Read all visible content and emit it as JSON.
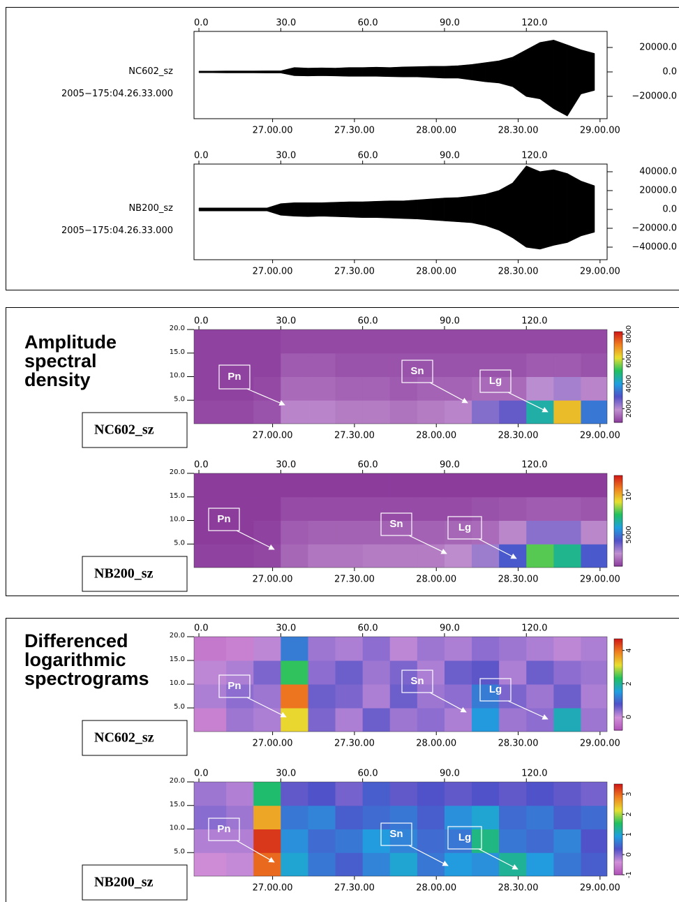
{
  "chart_data": [
    {
      "type": "line",
      "label": "NC602_sz",
      "subtitle": "2005−175:04.26.33.000",
      "xlim": [
        -1.8,
        149.6
      ],
      "xticks": [
        {
          "value": 0,
          "label": "0.0"
        },
        {
          "value": 30,
          "label": "30.0"
        },
        {
          "value": 60,
          "label": "60.0"
        },
        {
          "value": 90,
          "label": "90.0"
        },
        {
          "value": 120,
          "label": "120.0"
        }
      ],
      "x2ticks": [
        {
          "value": 27,
          "label": "27.00.00"
        },
        {
          "value": 57,
          "label": "27.30.00"
        },
        {
          "value": 87,
          "label": "28.00.00"
        },
        {
          "value": 117,
          "label": "28.30.00"
        },
        {
          "value": 147,
          "label": "29.00.00"
        }
      ],
      "ylim": [
        -38286,
        33143
      ],
      "yticks": [
        {
          "value": 20000,
          "label": "20000.0"
        },
        {
          "value": 0,
          "label": "0.0"
        },
        {
          "value": -20000,
          "label": "−20000.0"
        }
      ],
      "x": [
        0,
        5,
        10,
        15,
        20,
        25,
        30,
        35,
        40,
        45,
        50,
        55,
        60,
        65,
        70,
        75,
        80,
        85,
        90,
        95,
        100,
        105,
        110,
        115,
        120,
        125,
        130,
        135,
        140,
        145
      ],
      "series": [
        {
          "color": "#000000",
          "values": [
            600,
            600,
            700,
            700,
            700,
            800,
            800,
            3500,
            3000,
            3200,
            3000,
            3500,
            3500,
            3800,
            3500,
            4000,
            4200,
            4500,
            4500,
            5000,
            6000,
            7500,
            9000,
            12000,
            18000,
            24000,
            26000,
            22000,
            18000,
            15000
          ]
        },
        {
          "color": "#000000",
          "values": [
            -600,
            -600,
            -700,
            -700,
            -700,
            -800,
            -800,
            -3000,
            -3200,
            -3000,
            -3200,
            -3500,
            -3500,
            -3500,
            -3800,
            -4000,
            -4000,
            -4500,
            -5000,
            -5000,
            -6500,
            -8000,
            -9000,
            -12000,
            -20000,
            -22000,
            -30000,
            -36000,
            -18000,
            -15000
          ]
        }
      ]
    },
    {
      "type": "line",
      "label": "NB200_sz",
      "subtitle": "2005−175:04.26.33.000",
      "xlim": [
        -1.8,
        149.6
      ],
      "xticks": [
        {
          "value": 0,
          "label": "0.0"
        },
        {
          "value": 30,
          "label": "30.0"
        },
        {
          "value": 60,
          "label": "60.0"
        },
        {
          "value": 90,
          "label": "90.0"
        },
        {
          "value": 120,
          "label": "120.0"
        }
      ],
      "x2ticks": [
        {
          "value": 27,
          "label": "27.00.00"
        },
        {
          "value": 57,
          "label": "27.30.00"
        },
        {
          "value": 87,
          "label": "28.00.00"
        },
        {
          "value": 117,
          "label": "28.30.00"
        },
        {
          "value": 147,
          "label": "29.00.00"
        }
      ],
      "ylim": [
        -53333,
        48148
      ],
      "yticks": [
        {
          "value": 40000,
          "label": "40000.0"
        },
        {
          "value": 20000,
          "label": "20000.0"
        },
        {
          "value": 0,
          "label": "0.0"
        },
        {
          "value": -20000,
          "label": "−20000.0"
        },
        {
          "value": -40000,
          "label": "−40000.0"
        }
      ],
      "x": [
        0,
        5,
        10,
        15,
        20,
        25,
        30,
        35,
        40,
        45,
        50,
        55,
        60,
        65,
        70,
        75,
        80,
        85,
        90,
        95,
        100,
        105,
        110,
        115,
        120,
        125,
        130,
        135,
        140,
        145
      ],
      "series": [
        {
          "color": "#000000",
          "values": [
            1500,
            1500,
            1500,
            1500,
            1500,
            1500,
            6000,
            7000,
            7000,
            7000,
            7500,
            8000,
            8000,
            8500,
            9000,
            9000,
            10000,
            11000,
            12000,
            12500,
            14000,
            16000,
            20000,
            28000,
            46000,
            40000,
            42000,
            38000,
            30000,
            25000
          ]
        },
        {
          "color": "#000000",
          "values": [
            -1500,
            -1500,
            -1500,
            -1500,
            -1500,
            -1500,
            -6000,
            -7000,
            -7500,
            -7000,
            -7500,
            -8000,
            -8500,
            -8500,
            -9000,
            -9500,
            -10000,
            -11000,
            -12000,
            -13000,
            -14000,
            -17000,
            -22000,
            -30000,
            -40000,
            -42000,
            -38000,
            -35000,
            -28000,
            -24000
          ]
        }
      ]
    },
    {
      "type": "heatmap",
      "title": "Amplitude spectral density",
      "label": "NC602_sz",
      "xlim": [
        -1.8,
        149.6
      ],
      "xticks": [
        {
          "value": 0,
          "label": "0.0"
        },
        {
          "value": 30,
          "label": "30.0"
        },
        {
          "value": 60,
          "label": "60.0"
        },
        {
          "value": 90,
          "label": "90.0"
        },
        {
          "value": 120,
          "label": "120.0"
        }
      ],
      "x2ticks": [
        {
          "value": 27,
          "label": "27.00.00"
        },
        {
          "value": 57,
          "label": "27.30.00"
        },
        {
          "value": 87,
          "label": "28.00.00"
        },
        {
          "value": 117,
          "label": "28.30.00"
        },
        {
          "value": 147,
          "label": "29.00.00"
        }
      ],
      "ylim": [
        0,
        20
      ],
      "yticks": [
        {
          "value": 20,
          "label": "20.0"
        },
        {
          "value": 15,
          "label": "15.0"
        },
        {
          "value": 10,
          "label": "10.0"
        },
        {
          "value": 5,
          "label": "5.0"
        }
      ],
      "xbins": [
        -2,
        10,
        20,
        30,
        40,
        50,
        60,
        70,
        80,
        90,
        100,
        110,
        120,
        130,
        140,
        150
      ],
      "ybins": [
        0,
        5,
        10,
        15,
        20
      ],
      "values": [
        [
          1100,
          1100,
          1200,
          1800,
          1800,
          1700,
          1700,
          1600,
          1700,
          1800,
          2500,
          2800,
          4500,
          6500,
          3500
        ],
        [
          1000,
          1000,
          1100,
          1500,
          1500,
          1400,
          1400,
          1300,
          1400,
          1400,
          1500,
          1500,
          2000,
          2200,
          1800
        ],
        [
          1000,
          1000,
          1000,
          1300,
          1300,
          1200,
          1200,
          1200,
          1200,
          1200,
          1200,
          1200,
          1300,
          1300,
          1200
        ],
        [
          1000,
          1000,
          1000,
          1100,
          1100,
          1100,
          1100,
          1100,
          1100,
          1100,
          1100,
          1100,
          1100,
          1100,
          1100
        ]
      ],
      "clim": [
        900,
        8200
      ],
      "cticks": [
        2000,
        4000,
        6000,
        8000
      ],
      "colormap": [
        "#8a3a9a",
        "#c090d0",
        "#5050c8",
        "#20a0e0",
        "#20c060",
        "#e8e030",
        "#f08020",
        "#d01818"
      ],
      "annotations": [
        "Pn",
        "Sn",
        "Lg"
      ]
    },
    {
      "type": "heatmap",
      "label": "NB200_sz",
      "xlim": [
        -1.8,
        149.6
      ],
      "xticks": [
        {
          "value": 0,
          "label": "0.0"
        },
        {
          "value": 30,
          "label": "30.0"
        },
        {
          "value": 60,
          "label": "60.0"
        },
        {
          "value": 90,
          "label": "90.0"
        },
        {
          "value": 120,
          "label": "120.0"
        }
      ],
      "x2ticks": [
        {
          "value": 27,
          "label": "27.00.00"
        },
        {
          "value": 57,
          "label": "27.30.00"
        },
        {
          "value": 87,
          "label": "28.00.00"
        },
        {
          "value": 117,
          "label": "28.30.00"
        },
        {
          "value": 147,
          "label": "29.00.00"
        }
      ],
      "ylim": [
        0,
        20
      ],
      "yticks": [
        {
          "value": 20,
          "label": "20.0"
        },
        {
          "value": 15,
          "label": "15.0"
        },
        {
          "value": 10,
          "label": "10.0"
        },
        {
          "value": 5,
          "label": "5.0"
        }
      ],
      "xbins": [
        -2,
        10,
        20,
        30,
        40,
        50,
        60,
        70,
        80,
        90,
        100,
        110,
        120,
        130,
        140,
        150
      ],
      "ybins": [
        0,
        5,
        10,
        15,
        20
      ],
      "values": [
        [
          1200,
          1200,
          1300,
          1900,
          2200,
          2200,
          2300,
          2300,
          2300,
          2600,
          3200,
          4500,
          8000,
          7000,
          4500
        ],
        [
          1100,
          1100,
          1200,
          1700,
          1800,
          1800,
          1800,
          1800,
          1800,
          1900,
          2000,
          2500,
          3500,
          3500,
          2500
        ],
        [
          1100,
          1100,
          1100,
          1400,
          1400,
          1400,
          1400,
          1400,
          1400,
          1400,
          1500,
          1600,
          1700,
          1700,
          1600
        ],
        [
          1100,
          1100,
          1100,
          1100,
          1100,
          1100,
          1100,
          1100,
          1100,
          1100,
          1100,
          1100,
          1100,
          1100,
          1100
        ]
      ],
      "clim": [
        1050,
        12450
      ],
      "cticks": [
        5000,
        {
          "value": 10000,
          "label": "10⁴"
        }
      ],
      "colormap": [
        "#8a3a9a",
        "#c090d0",
        "#5050c8",
        "#20a0e0",
        "#20c060",
        "#e8e030",
        "#f08020",
        "#d01818"
      ],
      "annotations": [
        "Pn",
        "Sn",
        "Lg"
      ]
    },
    {
      "type": "heatmap",
      "title": "Differenced logarithmic spectrograms",
      "label": "NC602_sz",
      "xlim": [
        -1.8,
        149.6
      ],
      "xticks": [
        {
          "value": 0,
          "label": "0.0"
        },
        {
          "value": 30,
          "label": "30.0"
        },
        {
          "value": 60,
          "label": "60.0"
        },
        {
          "value": 90,
          "label": "90.0"
        },
        {
          "value": 120,
          "label": "120.0"
        }
      ],
      "x2ticks": [
        {
          "value": 27,
          "label": "27.00.00"
        },
        {
          "value": 57,
          "label": "27.30.00"
        },
        {
          "value": 87,
          "label": "28.00.00"
        },
        {
          "value": 117,
          "label": "28.30.00"
        },
        {
          "value": 147,
          "label": "29.00.00"
        }
      ],
      "ylim": [
        0,
        20
      ],
      "yticks": [
        {
          "value": 20,
          "label": "20.0"
        },
        {
          "value": 15,
          "label": "15.0"
        },
        {
          "value": 10,
          "label": "10.0"
        },
        {
          "value": 5,
          "label": "5.0"
        }
      ],
      "xbins": [
        -2,
        10,
        20,
        30,
        40,
        50,
        60,
        70,
        80,
        90,
        100,
        110,
        120,
        130,
        140,
        150
      ],
      "ybins": [
        0,
        5,
        10,
        15,
        20
      ],
      "values": [
        [
          -0.2,
          0.3,
          0.2,
          3.2,
          0.5,
          0.2,
          0.6,
          0.3,
          0.4,
          0.2,
          1.5,
          0.3,
          0.4,
          1.8,
          0.3
        ],
        [
          0.2,
          0.4,
          0.3,
          4.0,
          0.6,
          0.5,
          0.2,
          0.6,
          0.3,
          0.4,
          1.2,
          0.5,
          0.3,
          0.6,
          0.2
        ],
        [
          0.1,
          0.2,
          0.5,
          2.4,
          0.4,
          0.6,
          0.3,
          0.5,
          0.2,
          0.6,
          0.7,
          0.2,
          0.6,
          0.4,
          0.3
        ],
        [
          -0.3,
          -0.2,
          0.1,
          1.2,
          0.3,
          0.2,
          0.4,
          0.1,
          0.3,
          0.2,
          0.4,
          0.3,
          0.2,
          0.1,
          0.2
        ]
      ],
      "clim": [
        -0.8,
        4.7
      ],
      "cticks": [
        0,
        2,
        4
      ],
      "colormap": [
        "#b050b8",
        "#d090d8",
        "#5050c8",
        "#20a0e0",
        "#20c060",
        "#e8e030",
        "#f08020",
        "#d01818"
      ],
      "annotations": [
        "Pn",
        "Sn",
        "Lg"
      ]
    },
    {
      "type": "heatmap",
      "label": "NB200_sz",
      "xlim": [
        -1.8,
        149.6
      ],
      "xticks": [
        {
          "value": 0,
          "label": "0.0"
        },
        {
          "value": 30,
          "label": "30.0"
        },
        {
          "value": 60,
          "label": "60.0"
        },
        {
          "value": 90,
          "label": "90.0"
        },
        {
          "value": 120,
          "label": "120.0"
        }
      ],
      "x2ticks": [
        {
          "value": 27,
          "label": "27.00.00"
        },
        {
          "value": 57,
          "label": "27.30.00"
        },
        {
          "value": 87,
          "label": "28.00.00"
        },
        {
          "value": 117,
          "label": "28.30.00"
        },
        {
          "value": 147,
          "label": "29.00.00"
        }
      ],
      "ylim": [
        0,
        20
      ],
      "yticks": [
        {
          "value": 20,
          "label": "20.0"
        },
        {
          "value": 15,
          "label": "15.0"
        },
        {
          "value": 10,
          "label": "10.0"
        },
        {
          "value": 5,
          "label": "5.0"
        }
      ],
      "xbins": [
        -2,
        10,
        20,
        30,
        40,
        50,
        60,
        70,
        80,
        90,
        100,
        110,
        120,
        130,
        140,
        150
      ],
      "ybins": [
        0,
        5,
        10,
        15,
        20
      ],
      "values": [
        [
          -0.4,
          -0.3,
          3.0,
          1.0,
          0.6,
          0.4,
          0.7,
          1.0,
          0.6,
          0.9,
          0.8,
          1.3,
          0.9,
          0.6,
          0.4
        ],
        [
          -0.2,
          -0.2,
          3.3,
          0.8,
          0.5,
          0.6,
          0.9,
          0.7,
          0.5,
          0.6,
          1.4,
          0.6,
          0.5,
          0.7,
          0.3
        ],
        [
          0,
          -0.1,
          2.6,
          0.6,
          0.7,
          0.4,
          0.5,
          0.6,
          0.4,
          0.8,
          1.0,
          0.5,
          0.6,
          0.4,
          0.5
        ],
        [
          -0.1,
          -0.2,
          1.5,
          0.2,
          0.3,
          0.1,
          0.4,
          0.2,
          0.3,
          0.2,
          0.3,
          0.2,
          0.3,
          0.2,
          0.1
        ]
      ],
      "clim": [
        -1,
        3.5
      ],
      "cticks": [
        -1,
        0,
        1,
        2,
        3
      ],
      "colormap": [
        "#b050b8",
        "#d090d8",
        "#5050c8",
        "#20a0e0",
        "#20c060",
        "#e8e030",
        "#f08020",
        "#d01818"
      ],
      "annotations": [
        "Pn",
        "Sn",
        "Lg"
      ]
    }
  ]
}
